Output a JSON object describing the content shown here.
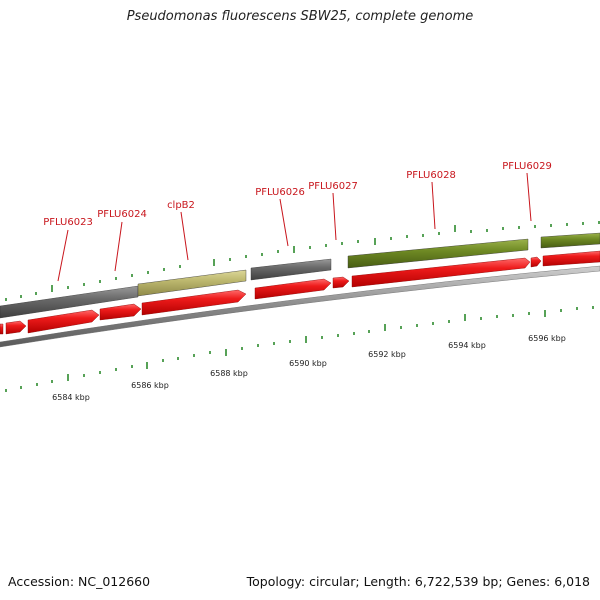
{
  "title": "Pseudomonas fluorescens SBW25, complete genome",
  "footer": {
    "accession": "Accession: NC_012660",
    "summary": "Topology: circular; Length: 6,722,539 bp; Genes: 6,018"
  },
  "colors": {
    "cds_red": "#e8101a",
    "gene_gray": "#666666",
    "gene_khaki": "#b9b46c",
    "gene_olive": "#6f8a24",
    "backbone": "#888888",
    "tick_green": "#2d8a2d",
    "label_red": "#c8161d"
  },
  "gene_labels": [
    {
      "id": "PFLU6023",
      "text": "PFLU6023"
    },
    {
      "id": "PFLU6024",
      "text": "PFLU6024"
    },
    {
      "id": "clpB2",
      "text": "clpB2"
    },
    {
      "id": "PFLU6026",
      "text": "PFLU6026"
    },
    {
      "id": "PFLU6027",
      "text": "PFLU6027"
    },
    {
      "id": "PFLU6028",
      "text": "PFLU6028"
    },
    {
      "id": "PFLU6029",
      "text": "PFLU6029"
    }
  ],
  "scale_labels": [
    "6584 kbp",
    "6586 kbp",
    "6588 kbp",
    "6590 kbp",
    "6592 kbp",
    "6594 kbp",
    "6596 kbp"
  ]
}
